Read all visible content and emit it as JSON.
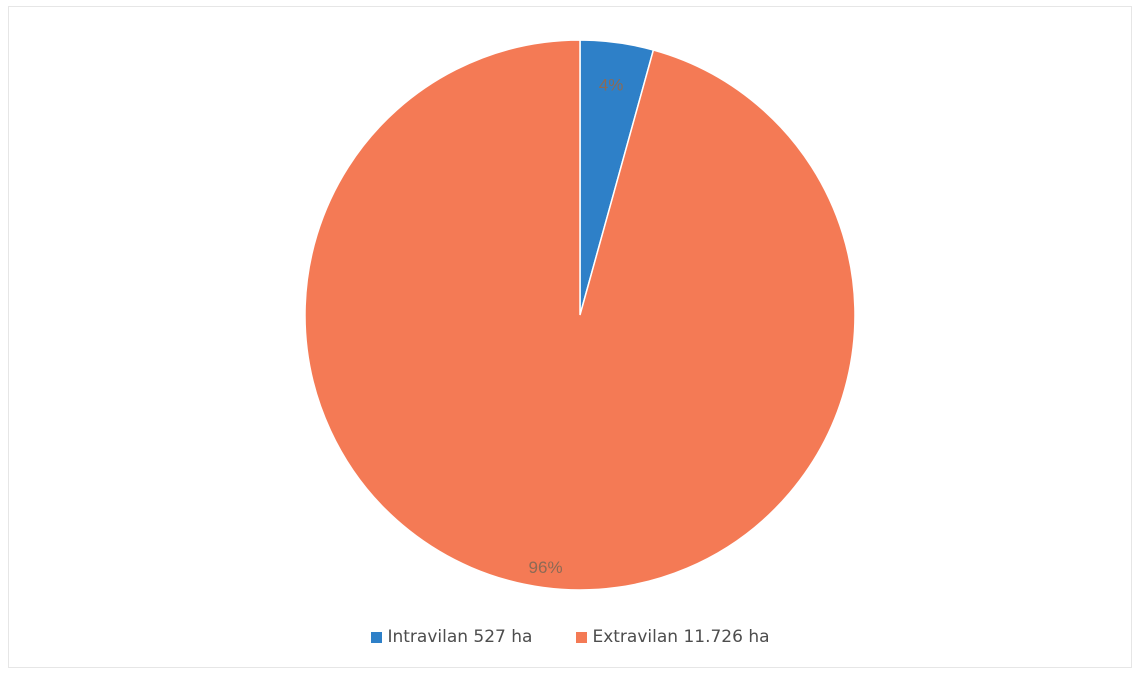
{
  "chart_data": {
    "type": "pie",
    "title": "",
    "start_angle_deg": 0,
    "direction": "clockwise",
    "slices": [
      {
        "name": "Intravilan 527 ha",
        "value": 527,
        "percent_label": "4%",
        "color": "#2e80c8"
      },
      {
        "name": "Extravilan 11.726 ha",
        "value": 11726,
        "percent_label": "96%",
        "color": "#f47a55"
      }
    ],
    "legend_position": "bottom"
  }
}
